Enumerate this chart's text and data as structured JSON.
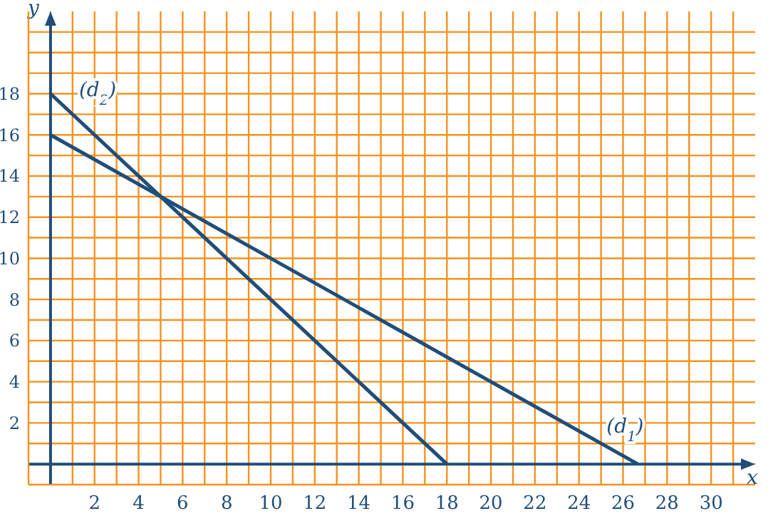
{
  "chart_data": {
    "type": "line",
    "xlabel": "x",
    "ylabel": "y",
    "series": [
      {
        "name": "(d$_{1}$)",
        "color": "#1f4e79",
        "x": [
          0,
          26.67
        ],
        "values": [
          16,
          0
        ]
      },
      {
        "name": "(d$_{2}$)",
        "color": "#1f4e79",
        "x": [
          0,
          18
        ],
        "values": [
          18,
          0
        ]
      }
    ],
    "xlim": [
      -1,
      32
    ],
    "xticks": [
      {
        "value": -1,
        "label": null
      },
      {
        "value": 0,
        "label": null
      },
      {
        "value": 1,
        "label": null
      },
      2,
      {
        "value": 3,
        "label": null
      },
      4,
      {
        "value": 5,
        "label": null
      },
      6,
      {
        "value": 7,
        "label": null
      },
      8,
      {
        "value": 9,
        "label": null
      },
      10,
      {
        "value": 11,
        "label": null
      },
      12,
      {
        "value": 13,
        "label": null
      },
      14,
      {
        "value": 15,
        "label": null
      },
      16,
      {
        "value": 17,
        "label": null
      },
      18,
      {
        "value": 19,
        "label": null
      },
      20,
      {
        "value": 21,
        "label": null
      },
      22,
      {
        "value": 23,
        "label": null
      },
      24,
      {
        "value": 25,
        "label": null
      },
      26,
      {
        "value": 27,
        "label": null
      },
      28,
      {
        "value": 29,
        "label": null
      },
      30,
      {
        "value": 31,
        "label": null
      }
    ],
    "ylim": [
      -1,
      22
    ],
    "yticks": [
      {
        "value": -1,
        "label": null
      },
      {
        "value": 0,
        "label": null
      },
      {
        "value": 1,
        "label": null
      },
      2,
      {
        "value": 3,
        "label": null
      },
      4,
      {
        "value": 5,
        "label": null
      },
      6,
      {
        "value": 7,
        "label": null
      },
      8,
      {
        "value": 9,
        "label": null
      },
      10,
      {
        "value": 11,
        "label": null
      },
      12,
      {
        "value": 13,
        "label": null
      },
      14,
      {
        "value": 15,
        "label": null
      },
      16,
      {
        "value": 17,
        "label": null
      },
      18,
      {
        "value": 19,
        "label": null
      },
      {
        "value": 20,
        "label": null
      },
      {
        "value": 21,
        "label": null
      }
    ],
    "grid": true,
    "marker": "none",
    "line_style": "solid"
  }
}
